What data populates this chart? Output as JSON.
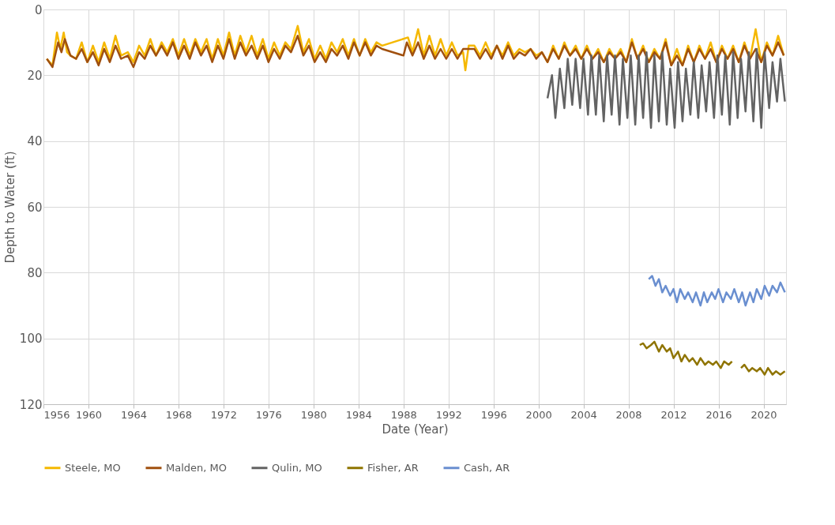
{
  "chart_data": {
    "type": "line",
    "xlabel": "Date (Year)",
    "ylabel": "Depth to Water (ft)",
    "xlim": [
      1956,
      2022
    ],
    "xticks": [
      1956,
      1960,
      1964,
      1968,
      1972,
      1976,
      1980,
      1984,
      1988,
      1992,
      1996,
      2000,
      2004,
      2008,
      2012,
      2016,
      2020
    ],
    "ylim": [
      120,
      0
    ],
    "yticks": [
      0,
      20,
      40,
      60,
      80,
      100,
      120
    ],
    "grid": true,
    "legend": "bottom",
    "line_style": "solid",
    "marker": "none",
    "series": [
      {
        "name": "Steele, MO",
        "color": "#f5b800",
        "x": [
          1956.3,
          1956.8,
          1957.2,
          1957.5,
          1957.8,
          1958.1,
          1958.4,
          1958.9,
          1959.4,
          1959.9,
          1960.4,
          1960.9,
          1961.4,
          1961.9,
          1962.4,
          1962.9,
          1963.5,
          1964.0,
          1964.5,
          1965.0,
          1965.5,
          1966.0,
          1966.5,
          1967.0,
          1967.5,
          1968.0,
          1968.5,
          1969.0,
          1969.5,
          1970.0,
          1970.5,
          1971.0,
          1971.5,
          1972.0,
          1972.5,
          1973.0,
          1973.5,
          1974.0,
          1974.5,
          1975.0,
          1975.5,
          1976.0,
          1976.5,
          1977.0,
          1977.5,
          1978.0,
          1978.6,
          1979.1,
          1979.6,
          1980.1,
          1980.6,
          1981.1,
          1981.6,
          1982.1,
          1982.6,
          1983.1,
          1983.6,
          1984.1,
          1984.6,
          1985.1,
          1985.6,
          1986.1,
          1988.4,
          1988.8,
          1989.3,
          1989.8,
          1990.3,
          1990.8,
          1991.3,
          1991.8,
          1992.3,
          1992.8,
          1993.3,
          1993.5,
          1993.8,
          1994.3,
          1994.8,
          1995.3,
          1995.8,
          1996.3,
          1996.8,
          1997.3,
          1997.8,
          1998.3,
          1998.8,
          1999.3,
          1999.8,
          2000.3,
          2000.8,
          2001.3,
          2001.8,
          2002.3,
          2002.8,
          2003.3,
          2003.8,
          2004.3,
          2004.8,
          2005.3,
          2005.8,
          2006.3,
          2006.8,
          2007.3,
          2007.8,
          2008.3,
          2008.8,
          2009.3,
          2009.8,
          2010.3,
          2010.8,
          2011.3,
          2011.8,
          2012.3,
          2012.8,
          2013.3,
          2013.8,
          2014.3,
          2014.8,
          2015.3,
          2015.8,
          2016.3,
          2016.8,
          2017.3,
          2017.8,
          2018.3,
          2018.8,
          2019.3,
          2019.8,
          2020.3,
          2020.8,
          2021.3,
          2021.8
        ],
        "values": [
          15,
          17,
          7,
          12,
          7,
          13,
          14,
          15,
          10,
          16,
          11,
          16,
          10,
          15,
          8,
          14,
          13,
          16,
          11,
          14,
          9,
          14,
          10,
          13,
          9,
          14,
          9,
          14,
          9,
          13,
          9,
          15,
          9,
          14,
          7,
          14,
          8,
          13,
          8,
          14,
          9,
          15,
          10,
          14,
          10,
          12,
          5,
          13,
          9,
          15,
          11,
          15,
          10,
          13,
          9,
          14,
          9,
          14,
          9,
          13,
          10,
          11,
          8.5,
          13,
          6,
          14,
          8,
          14,
          9,
          14,
          10,
          14,
          13,
          18.5,
          11,
          11,
          14,
          10,
          14,
          11,
          14,
          10,
          14,
          12,
          13,
          12,
          14,
          13,
          16,
          11,
          15,
          10,
          14,
          11,
          15,
          11,
          15,
          12,
          16,
          12,
          15,
          12,
          16,
          9,
          15,
          11,
          16,
          12,
          15,
          9,
          17,
          12,
          17,
          11,
          16,
          11,
          15,
          10,
          16,
          11,
          15,
          11,
          16,
          10,
          15,
          6,
          16,
          10,
          14,
          8,
          14
        ]
      },
      {
        "name": "Malden, MO",
        "color": "#a0500f",
        "x": [
          1956.3,
          1956.8,
          1957.3,
          1957.6,
          1957.9,
          1958.4,
          1958.9,
          1959.4,
          1959.9,
          1960.4,
          1960.9,
          1961.4,
          1961.9,
          1962.4,
          1962.9,
          1963.5,
          1964.0,
          1964.5,
          1965.0,
          1965.5,
          1966.0,
          1966.5,
          1967.0,
          1967.5,
          1968.0,
          1968.5,
          1969.0,
          1969.5,
          1970.0,
          1970.5,
          1971.0,
          1971.5,
          1972.0,
          1972.5,
          1973.0,
          1973.5,
          1974.0,
          1974.5,
          1975.0,
          1975.5,
          1976.0,
          1976.5,
          1977.0,
          1977.5,
          1978.0,
          1978.6,
          1979.1,
          1979.6,
          1980.1,
          1980.6,
          1981.1,
          1981.6,
          1982.1,
          1982.6,
          1983.1,
          1983.6,
          1984.1,
          1984.6,
          1985.1,
          1985.6,
          1986.1,
          1988.0,
          1988.3,
          1988.8,
          1989.3,
          1989.8,
          1990.3,
          1990.8,
          1991.3,
          1991.8,
          1992.3,
          1992.8,
          1993.3,
          1994.3,
          1994.8,
          1995.3,
          1995.8,
          1996.3,
          1996.8,
          1997.3,
          1997.8,
          1998.3,
          1998.8,
          1999.3,
          1999.8,
          2000.3,
          2000.8,
          2001.3,
          2001.8,
          2002.3,
          2002.8,
          2003.3,
          2003.8,
          2004.3,
          2004.8,
          2005.3,
          2005.8,
          2006.3,
          2006.8,
          2007.3,
          2007.8,
          2008.3,
          2008.8,
          2009.3,
          2009.8,
          2010.3,
          2010.8,
          2011.3,
          2011.8,
          2012.3,
          2012.8,
          2013.3,
          2013.8,
          2014.3,
          2014.8,
          2015.3,
          2015.8,
          2016.3,
          2016.8,
          2017.3,
          2017.8,
          2018.3,
          2018.8,
          2019.3,
          2019.8,
          2020.3,
          2020.8,
          2021.3,
          2021.8
        ],
        "values": [
          15,
          17.5,
          10,
          13,
          9,
          14,
          15,
          12,
          16,
          13,
          17,
          12,
          16,
          11,
          15,
          14,
          17.5,
          13,
          15,
          11,
          14,
          11,
          14,
          10,
          15,
          11,
          15,
          10,
          14,
          11,
          16,
          11,
          15,
          9,
          15,
          10,
          14,
          11,
          15,
          11,
          16,
          12,
          15,
          11,
          13,
          8,
          14,
          11,
          16,
          13,
          16,
          12,
          14,
          11,
          15,
          10,
          14,
          10,
          14,
          11,
          12,
          14,
          10,
          14,
          10,
          15,
          11,
          15,
          12,
          15,
          12,
          15,
          12,
          12,
          15,
          12,
          15,
          11,
          15,
          11,
          15,
          13,
          14,
          12,
          15,
          13,
          16,
          12,
          15,
          11,
          14,
          12,
          15,
          12,
          15,
          13,
          16,
          13,
          15,
          13,
          16,
          10,
          15,
          12,
          16,
          13,
          15,
          10,
          17,
          14,
          17,
          12,
          16,
          12,
          15,
          12,
          16,
          12,
          15,
          12,
          16,
          11,
          15,
          12,
          16,
          11,
          14,
          10,
          14
        ]
      },
      {
        "name": "Qulin, MO",
        "color": "#636363",
        "x": [
          2000.8,
          2001.2,
          2001.5,
          2001.9,
          2002.3,
          2002.6,
          2003.0,
          2003.3,
          2003.7,
          2004.0,
          2004.4,
          2004.7,
          2005.1,
          2005.4,
          2005.8,
          2006.1,
          2006.5,
          2006.8,
          2007.2,
          2007.5,
          2007.9,
          2008.2,
          2008.6,
          2008.9,
          2009.3,
          2009.6,
          2010.0,
          2010.3,
          2010.7,
          2011.0,
          2011.4,
          2011.7,
          2012.1,
          2012.4,
          2012.8,
          2013.1,
          2013.5,
          2013.8,
          2014.2,
          2014.5,
          2014.9,
          2015.2,
          2015.6,
          2015.9,
          2016.3,
          2016.6,
          2017.0,
          2017.3,
          2017.7,
          2018.0,
          2018.4,
          2018.7,
          2019.1,
          2019.4,
          2019.8,
          2020.1,
          2020.5,
          2020.8,
          2021.2,
          2021.5,
          2021.9
        ],
        "values": [
          27,
          20,
          33,
          18,
          30,
          15,
          29,
          15,
          30,
          15,
          32,
          14,
          32,
          14,
          34,
          14,
          32,
          14,
          35,
          15,
          33,
          14,
          35,
          14,
          33,
          13,
          36,
          14,
          34,
          13,
          35,
          18,
          36,
          16,
          34,
          18,
          32,
          16,
          33,
          17,
          31,
          16,
          33,
          14,
          32,
          14,
          35,
          13,
          33,
          15,
          31,
          13,
          34,
          12,
          36,
          13,
          30,
          16,
          28,
          15,
          28
        ]
      },
      {
        "name": "Fisher, AR",
        "color": "#8f7400",
        "x": [
          2009.0,
          2009.3,
          2009.6,
          2010.0,
          2010.3,
          2010.7,
          2011.0,
          2011.4,
          2011.7,
          2012.0,
          2012.4,
          2012.7,
          2013.0,
          2013.4,
          2013.7,
          2014.1,
          2014.4,
          2014.8,
          2015.1,
          2015.5,
          2015.8,
          2016.2,
          2016.5,
          2016.9,
          2017.2,
          2017.6,
          2018.0,
          2018.3,
          2018.7,
          2019.0,
          2019.4,
          2019.7,
          2020.1,
          2020.4,
          2020.8,
          2021.1,
          2021.5,
          2021.9
        ],
        "values": [
          102,
          101.5,
          103,
          102,
          101,
          104,
          102,
          104,
          103,
          106,
          104,
          107,
          105,
          107,
          106,
          108,
          106,
          108,
          107,
          108,
          107,
          109,
          107,
          108,
          107,
          null,
          109,
          108,
          110,
          109,
          110,
          109,
          111,
          109,
          111,
          110,
          111,
          110
        ]
      },
      {
        "name": "Cash, AR",
        "color": "#6a8fd0",
        "x": [
          2009.8,
          2010.1,
          2010.4,
          2010.7,
          2011.0,
          2011.3,
          2011.7,
          2012.0,
          2012.3,
          2012.6,
          2013.0,
          2013.3,
          2013.7,
          2014.0,
          2014.4,
          2014.7,
          2015.0,
          2015.4,
          2015.7,
          2016.0,
          2016.4,
          2016.7,
          2017.1,
          2017.4,
          2017.8,
          2018.1,
          2018.4,
          2018.8,
          2019.1,
          2019.4,
          2019.8,
          2020.1,
          2020.5,
          2020.8,
          2021.2,
          2021.5,
          2021.9
        ],
        "values": [
          82,
          81,
          84,
          82,
          86,
          84,
          87,
          85,
          89,
          85,
          88,
          86,
          89,
          86,
          90,
          86,
          89,
          86,
          88,
          85,
          89,
          86,
          88,
          85,
          89,
          86,
          90,
          86,
          89,
          85,
          88,
          84,
          87,
          84,
          86,
          83,
          86
        ]
      }
    ]
  }
}
